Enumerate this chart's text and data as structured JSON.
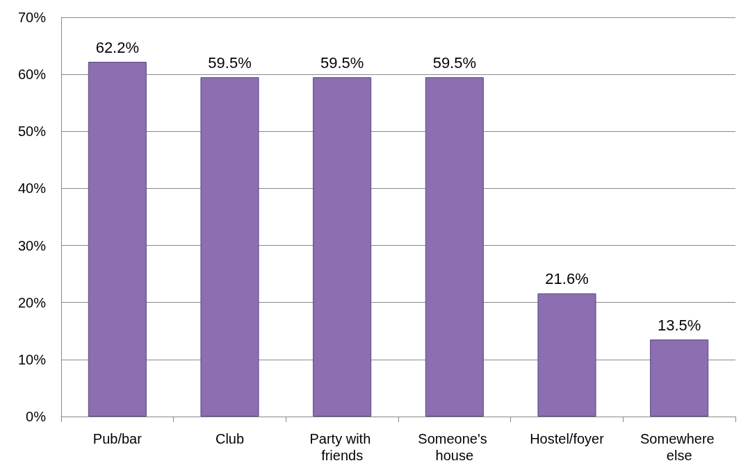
{
  "chart_data": {
    "type": "bar",
    "categories": [
      "Pub/bar",
      "Club",
      "Party with friends",
      "Someone's house",
      "Hostel/foyer",
      "Somewhere else"
    ],
    "values": [
      62.2,
      59.5,
      59.5,
      59.5,
      21.6,
      13.5
    ],
    "value_labels": [
      "62.2%",
      "59.5%",
      "59.5%",
      "59.5%",
      "21.6%",
      "13.5%"
    ],
    "color": "#8b6fb0",
    "ylim": [
      0,
      70
    ],
    "yticks": [
      {
        "value": 0,
        "label": "0%"
      },
      {
        "value": 10,
        "label": "10%"
      },
      {
        "value": 20,
        "label": "20%"
      },
      {
        "value": 30,
        "label": "30%"
      },
      {
        "value": 40,
        "label": "40%"
      },
      {
        "value": 50,
        "label": "50%"
      },
      {
        "value": 60,
        "label": "60%"
      },
      {
        "value": 70,
        "label": "70%"
      }
    ],
    "grid": "y"
  }
}
